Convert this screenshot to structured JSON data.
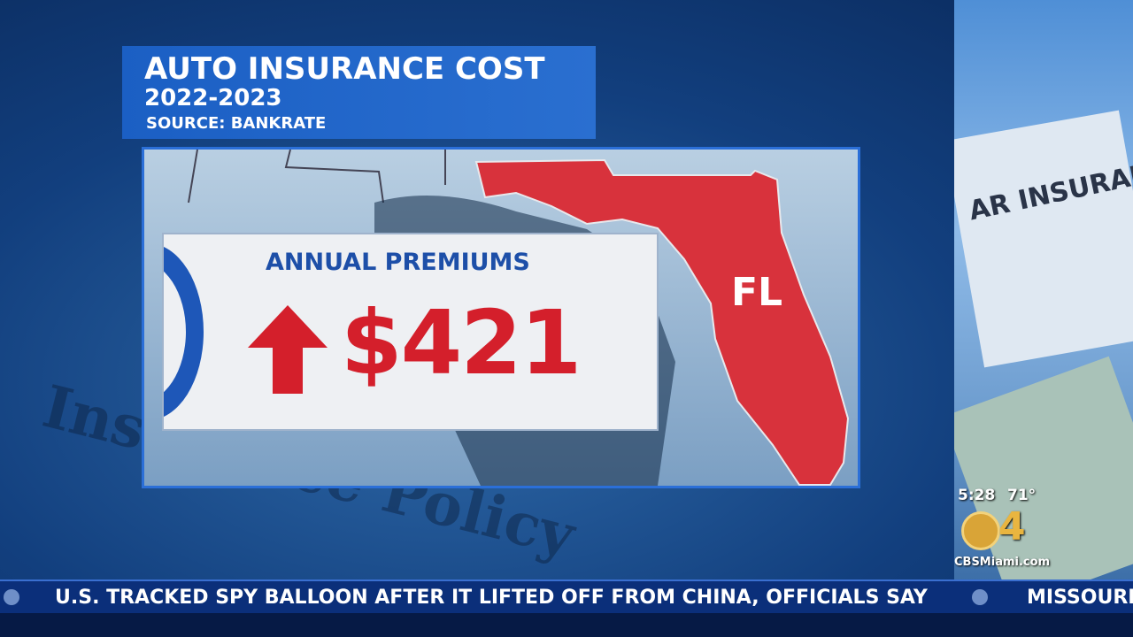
{
  "graphic": {
    "title": "AUTO INSURANCE COST",
    "years": "2022-2023",
    "source": "SOURCE: BANKRATE",
    "label": "ANNUAL PREMIUMS",
    "amount": "$421",
    "state": "FL"
  },
  "background": {
    "document_text": "Insurance Policy",
    "photo_text": "AR INSURAN"
  },
  "station": {
    "time": "5:28",
    "temperature": "71°",
    "channel": "4",
    "website": "CBSMiami.com"
  },
  "ticker": {
    "headline": "U.S. TRACKED SPY BALLOON AFTER IT LIFTED OFF FROM CHINA, OFFICIALS SAY",
    "next": "MISSOURI"
  }
}
